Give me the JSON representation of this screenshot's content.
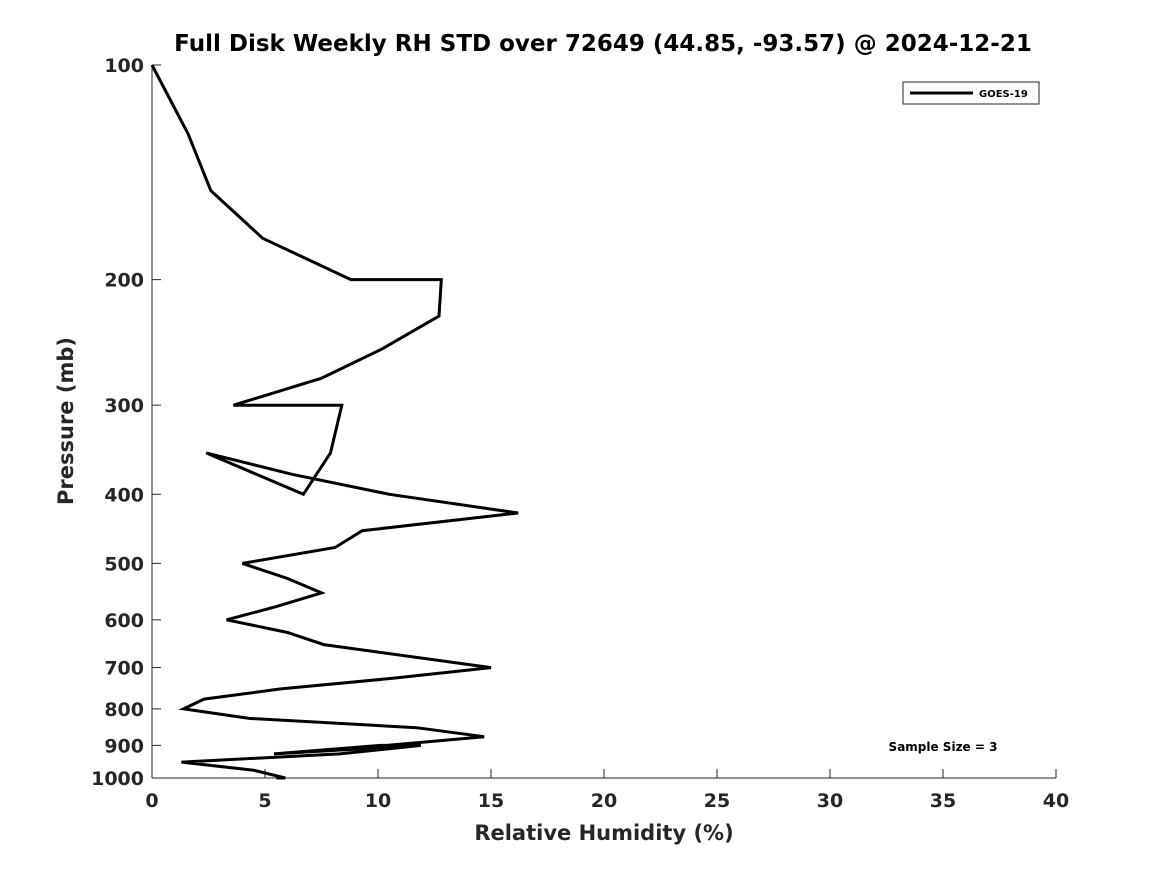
{
  "chart_data": {
    "type": "line",
    "title": "Full Disk Weekly RH STD over 72649 (44.85, -93.57) @ 2024-12-21",
    "xlabel": "Relative Humidity (%)",
    "ylabel": "Pressure (mb)",
    "xlim": [
      0,
      40
    ],
    "ylim": [
      100,
      1000
    ],
    "y_scale": "log",
    "y_reversed": true,
    "x_ticks": [
      "0",
      "5",
      "10",
      "15",
      "20",
      "25",
      "30",
      "35",
      "40"
    ],
    "x_tick_values": [
      0,
      5,
      10,
      15,
      20,
      25,
      30,
      35,
      40
    ],
    "y_ticks": [
      "100",
      "200",
      "300",
      "400",
      "500",
      "600",
      "700",
      "800",
      "900",
      "1000"
    ],
    "y_tick_values": [
      100,
      200,
      300,
      400,
      500,
      600,
      700,
      800,
      900,
      1000
    ],
    "grid": false,
    "legend_position": "top-right",
    "annotation": "Sample Size = 3",
    "series": [
      {
        "name": "GOES-19",
        "color": "#000000",
        "points": [
          [
            0.0,
            100
          ],
          [
            1.6,
            125
          ],
          [
            2.6,
            150
          ],
          [
            4.9,
            175
          ],
          [
            8.8,
            200
          ],
          [
            12.8,
            200
          ],
          [
            12.7,
            225
          ],
          [
            10.2,
            250
          ],
          [
            7.5,
            275
          ],
          [
            3.6,
            300
          ],
          [
            8.4,
            300
          ],
          [
            7.9,
            350
          ],
          [
            6.7,
            400
          ],
          [
            2.4,
            350
          ],
          [
            6.2,
            375
          ],
          [
            10.5,
            400
          ],
          [
            16.2,
            425
          ],
          [
            9.3,
            450
          ],
          [
            8.1,
            475
          ],
          [
            4.0,
            500
          ],
          [
            6.0,
            525
          ],
          [
            7.5,
            550
          ],
          [
            5.5,
            575
          ],
          [
            3.3,
            600
          ],
          [
            6.0,
            625
          ],
          [
            7.6,
            650
          ],
          [
            15.0,
            700
          ],
          [
            10.6,
            725
          ],
          [
            5.7,
            750
          ],
          [
            2.3,
            775
          ],
          [
            1.4,
            800
          ],
          [
            4.3,
            825
          ],
          [
            11.7,
            850
          ],
          [
            14.7,
            875
          ],
          [
            10.4,
            900
          ],
          [
            10.1,
            900
          ],
          [
            5.4,
            925
          ],
          [
            11.9,
            900
          ],
          [
            8.3,
            925
          ],
          [
            1.3,
            950
          ],
          [
            4.5,
            975
          ],
          [
            5.9,
            1000
          ],
          [
            5.5,
            1000
          ]
        ]
      }
    ]
  }
}
